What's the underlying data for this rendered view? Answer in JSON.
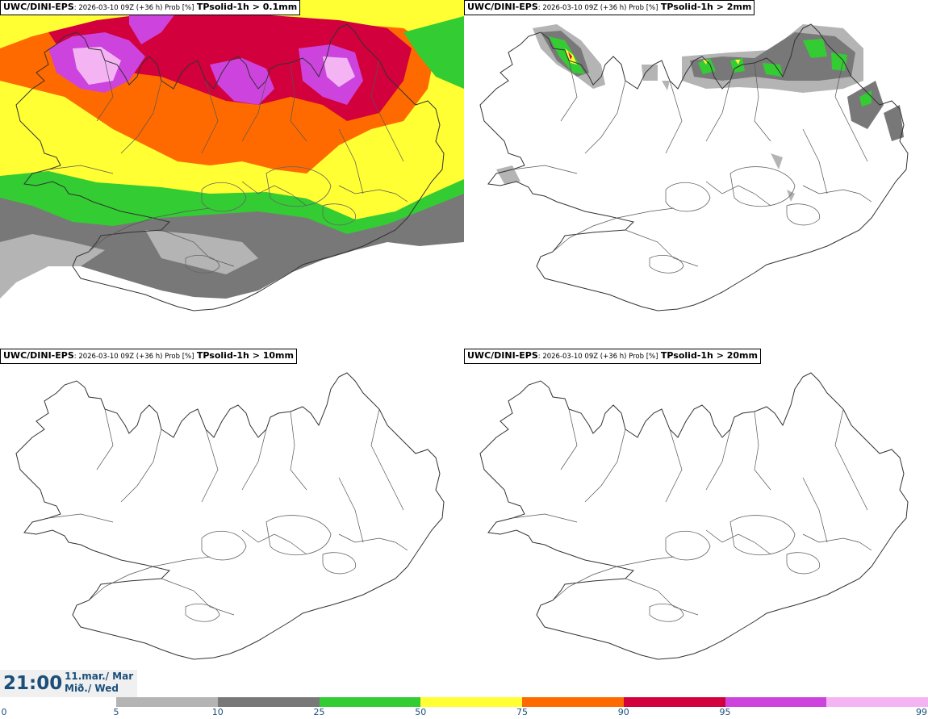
{
  "panels": [
    {
      "model": "UWC/DINI-EPS",
      "meta": ": 2026-03-10 09Z (+36 h) Prob [%]",
      "field": "TPsolid-1h > 0.1mm"
    },
    {
      "model": "UWC/DINI-EPS",
      "meta": ": 2026-03-10 09Z (+36 h) Prob [%]",
      "field": "TPsolid-1h > 2mm"
    },
    {
      "model": "UWC/DINI-EPS",
      "meta": ": 2026-03-10 09Z (+36 h) Prob [%]",
      "field": "TPsolid-1h > 10mm"
    },
    {
      "model": "UWC/DINI-EPS",
      "meta": ": 2026-03-10 09Z (+36 h) Prob [%]",
      "field": "TPsolid-1h > 20mm"
    }
  ],
  "valid_time": {
    "time": "21:00",
    "date_line1": "11.mar./ Mar",
    "date_line2": "Mið./ Wed"
  },
  "colorbar": {
    "ticks": [
      "0",
      "5",
      "10",
      "25",
      "50",
      "75",
      "90",
      "95",
      "99"
    ],
    "colors": [
      "#b4b4b4",
      "#787878",
      "#33cc33",
      "#ffff33",
      "#ff6a00",
      "#d2003c",
      "#cc44dd",
      "#f4b4f4"
    ]
  }
}
